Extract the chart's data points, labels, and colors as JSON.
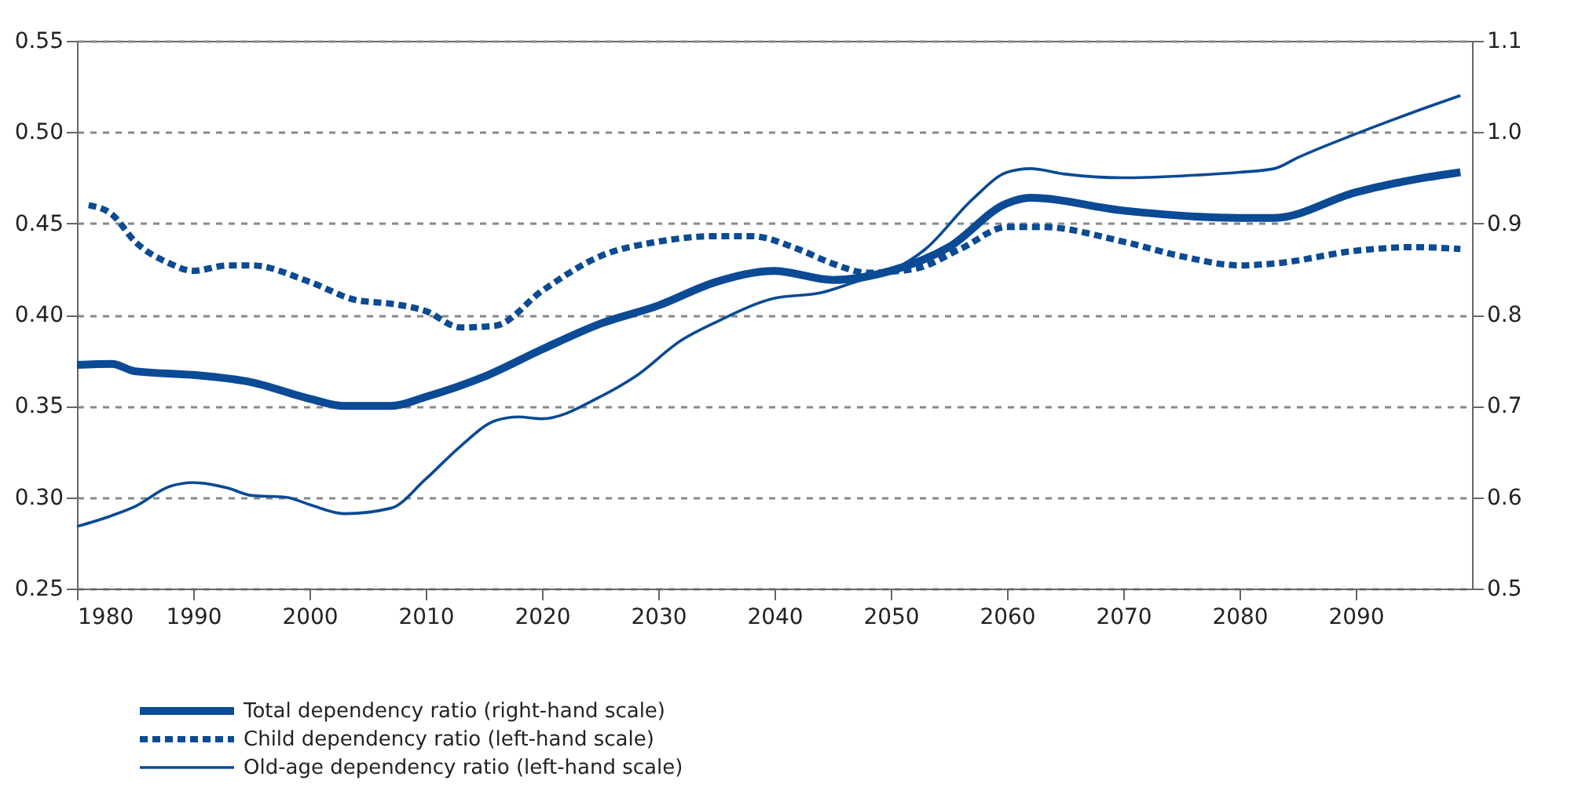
{
  "chart_data": {
    "type": "line",
    "xlim": [
      1980,
      2100
    ],
    "xticks": [
      1980,
      1990,
      2000,
      2010,
      2020,
      2030,
      2040,
      2050,
      2060,
      2070,
      2080,
      2090
    ],
    "ylim": [
      0.25,
      0.55
    ],
    "yticks": [
      {
        "value": 0.25,
        "label": "0.25"
      },
      {
        "value": 0.3,
        "label": "0.30"
      },
      {
        "value": 0.35,
        "label": "0.35"
      },
      {
        "value": 0.4,
        "label": "0.40"
      },
      {
        "value": 0.45,
        "label": "0.45"
      },
      {
        "value": 0.5,
        "label": "0.50"
      },
      {
        "value": 0.55,
        "label": "0.55"
      }
    ],
    "y2lim": [
      0.5,
      1.1
    ],
    "y2ticks": [
      0.5,
      0.6,
      0.7,
      0.8,
      0.9,
      {
        "value": 1.0,
        "label": "1.0"
      },
      1.1
    ],
    "grid": "y",
    "legend": "bottom",
    "marker": "none",
    "series": [
      {
        "name": "Total dependency ratio (right-hand scale)",
        "color": "#0b4a94",
        "axis": "y2",
        "line_style": "solid",
        "x": [
          1980,
          1983,
          1985,
          1990,
          1995,
          2000,
          2003,
          2007,
          2010,
          2015,
          2020,
          2025,
          2030,
          2035,
          2040,
          2045,
          2050,
          2055,
          2060,
          2062,
          2070,
          2080,
          2083,
          2090,
          2095,
          2099
        ],
        "values": [
          0.745,
          0.746,
          0.738,
          0.734,
          0.726,
          0.708,
          0.7,
          0.7,
          0.71,
          0.732,
          0.762,
          0.79,
          0.81,
          0.836,
          0.848,
          0.838,
          0.848,
          0.874,
          0.922,
          0.928,
          0.914,
          0.906,
          0.906,
          0.934,
          0.948,
          0.956
        ]
      },
      {
        "name": "Child dependency ratio (left-hand scale)",
        "color": "#0b4a94",
        "axis": "y",
        "line_style": "dashed",
        "x": [
          1981,
          1983,
          1985,
          1988,
          1990,
          1993,
          1995,
          2000,
          2004,
          2007,
          2010,
          2013,
          2016,
          2020,
          2025,
          2030,
          2035,
          2038,
          2042,
          2045,
          2048,
          2052,
          2056,
          2060,
          2063,
          2070,
          2075,
          2080,
          2083,
          2090,
          2095,
          2099
        ],
        "values": [
          0.46,
          0.455,
          0.44,
          0.428,
          0.424,
          0.427,
          0.427,
          0.418,
          0.408,
          0.406,
          0.402,
          0.393,
          0.394,
          0.413,
          0.432,
          0.44,
          0.443,
          0.443,
          0.436,
          0.428,
          0.423,
          0.425,
          0.436,
          0.448,
          0.448,
          0.44,
          0.432,
          0.427,
          0.428,
          0.435,
          0.437,
          0.436
        ]
      },
      {
        "name": "Old-age dependency ratio (left-hand scale)",
        "color": "#0b4a94",
        "axis": "y",
        "line_style": "solid",
        "x": [
          1980,
          1983,
          1985,
          1988,
          1990,
          1993,
          1995,
          1998,
          2000,
          2003,
          2007,
          2010,
          2013,
          2016,
          2018,
          2020,
          2025,
          2028,
          2032,
          2035,
          2040,
          2044,
          2047,
          2050,
          2053,
          2057,
          2060,
          2062,
          2065,
          2070,
          2075,
          2080,
          2083,
          2085,
          2090,
          2095,
          2099
        ],
        "values": [
          0.284,
          0.29,
          0.295,
          0.306,
          0.308,
          0.305,
          0.301,
          0.3,
          0.296,
          0.291,
          0.294,
          0.31,
          0.328,
          0.342,
          0.344,
          0.343,
          0.355,
          0.366,
          0.386,
          0.396,
          0.409,
          0.412,
          0.418,
          0.424,
          0.436,
          0.463,
          0.478,
          0.48,
          0.477,
          0.475,
          0.476,
          0.478,
          0.48,
          0.486,
          0.499,
          0.511,
          0.52
        ]
      }
    ]
  }
}
